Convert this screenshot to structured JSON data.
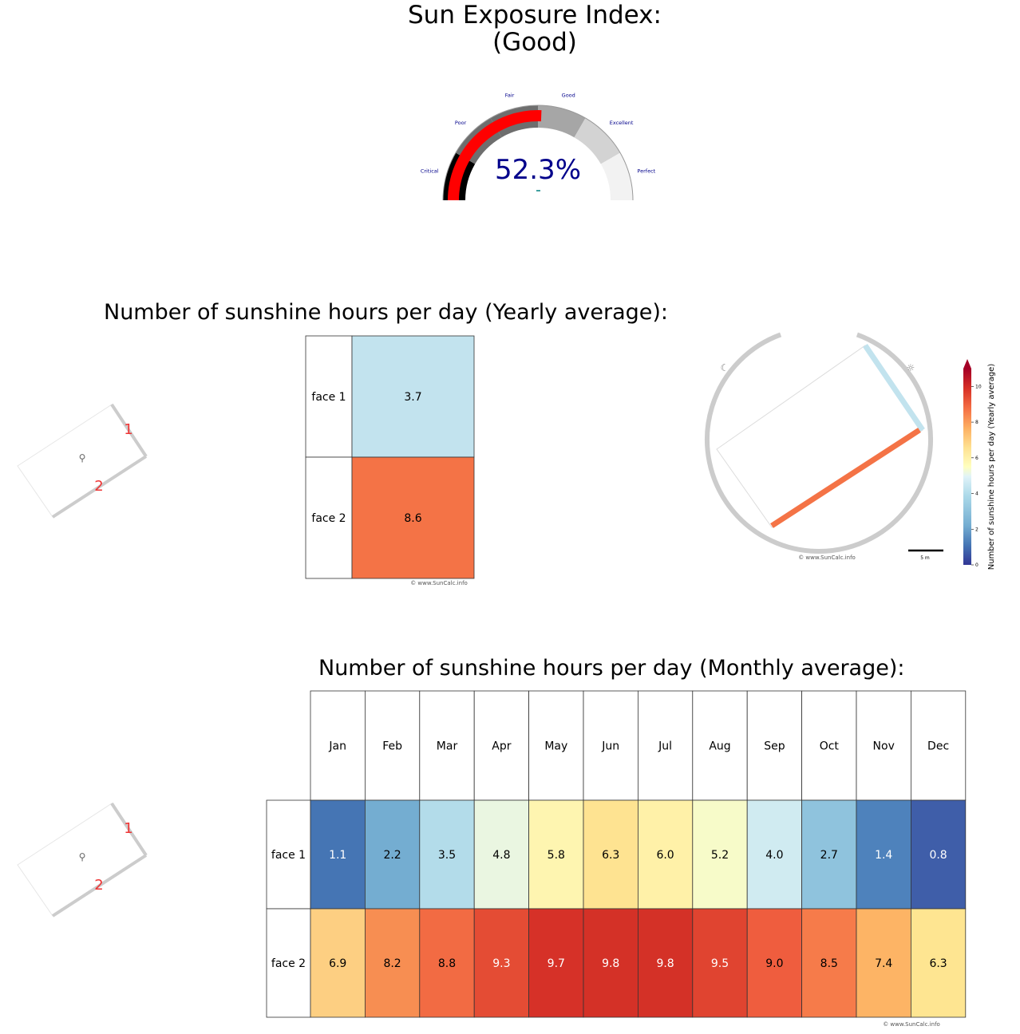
{
  "header": {
    "title_line1": "Sun Exposure Index:",
    "title_line2": "(Good)"
  },
  "gauge": {
    "value_text": "52.3%",
    "value_percent": 52.3,
    "labels": [
      "Critical",
      "Poor",
      "Fair",
      "Good",
      "Excellent",
      "Perfect"
    ],
    "indicator_color": "#ff0000",
    "value_color": "#00008b"
  },
  "yearly": {
    "title": "Number of sunshine hours per day (Yearly average):",
    "faces": [
      "face 1",
      "face 2"
    ],
    "values_text": [
      "3.7",
      "8.6"
    ],
    "colors": [
      "#c2e3ee",
      "#f47346"
    ],
    "watermark": "© www.SunCalc.info",
    "face_markers": [
      "1",
      "2"
    ]
  },
  "map": {
    "watermark": "© www.SunCalc.info",
    "scale_label": "5 m",
    "colorbar_label": "Number of sunshine hours per day (Yearly average)",
    "colorbar_ticks": [
      "0",
      "2",
      "4",
      "6",
      "8",
      "10"
    ],
    "colorbar_range": [
      0,
      11
    ]
  },
  "monthly": {
    "title": "Number of sunshine hours per day (Monthly average):",
    "months": [
      "Jan",
      "Feb",
      "Mar",
      "Apr",
      "May",
      "Jun",
      "Jul",
      "Aug",
      "Sep",
      "Oct",
      "Nov",
      "Dec"
    ],
    "faces": [
      "face 1",
      "face 2"
    ],
    "values_text": [
      [
        "1.1",
        "2.2",
        "3.5",
        "4.8",
        "5.8",
        "6.3",
        "6.0",
        "5.2",
        "4.0",
        "2.7",
        "1.4",
        "0.8"
      ],
      [
        "6.9",
        "8.2",
        "8.8",
        "9.3",
        "9.7",
        "9.8",
        "9.8",
        "9.5",
        "9.0",
        "8.5",
        "7.4",
        "6.3"
      ]
    ],
    "colors": [
      [
        "#4575b4",
        "#74add1",
        "#b3dcea",
        "#eaf6e1",
        "#fef5b0",
        "#fee391",
        "#fff1a8",
        "#f7fbc9",
        "#d0ebf1",
        "#8fc3dd",
        "#4e82bc",
        "#3f5ea9"
      ],
      [
        "#fdcf82",
        "#f78e52",
        "#f26b43",
        "#e44c34",
        "#d63128",
        "#d43127",
        "#d43127",
        "#e04430",
        "#ef5d3e",
        "#f67b4a",
        "#fdb465",
        "#fee591"
      ]
    ],
    "text_colors": [
      [
        "#ffffff",
        "#000000",
        "#000000",
        "#000000",
        "#000000",
        "#000000",
        "#000000",
        "#000000",
        "#000000",
        "#000000",
        "#ffffff",
        "#ffffff"
      ],
      [
        "#000000",
        "#000000",
        "#000000",
        "#ffffff",
        "#ffffff",
        "#ffffff",
        "#ffffff",
        "#ffffff",
        "#000000",
        "#000000",
        "#000000",
        "#000000"
      ]
    ],
    "watermark": "© www.SunCalc.info",
    "face_markers": [
      "1",
      "2"
    ]
  },
  "chart_data": [
    {
      "type": "gauge",
      "title": "Sun Exposure Index:\n(Good)",
      "value": 52.3,
      "unit": "%",
      "bands": [
        "Critical",
        "Poor",
        "Fair",
        "Good",
        "Excellent",
        "Perfect"
      ]
    },
    {
      "type": "heatmap",
      "title": "Number of sunshine hours per day (Yearly average):",
      "rows": [
        "face 1",
        "face 2"
      ],
      "values": [
        3.7,
        8.6
      ]
    },
    {
      "type": "heatmap",
      "title": "Number of sunshine hours per day (Monthly average):",
      "columns": [
        "Jan",
        "Feb",
        "Mar",
        "Apr",
        "May",
        "Jun",
        "Jul",
        "Aug",
        "Sep",
        "Oct",
        "Nov",
        "Dec"
      ],
      "rows": [
        "face 1",
        "face 2"
      ],
      "values": [
        [
          1.1,
          2.2,
          3.5,
          4.8,
          5.8,
          6.3,
          6.0,
          5.2,
          4.0,
          2.7,
          1.4,
          0.8
        ],
        [
          6.9,
          8.2,
          8.8,
          9.3,
          9.7,
          9.8,
          9.8,
          9.5,
          9.0,
          8.5,
          7.4,
          6.3
        ]
      ],
      "colorbar_label": "Number of sunshine hours per day (Yearly average)",
      "colorbar_range": [
        0,
        11
      ]
    }
  ]
}
